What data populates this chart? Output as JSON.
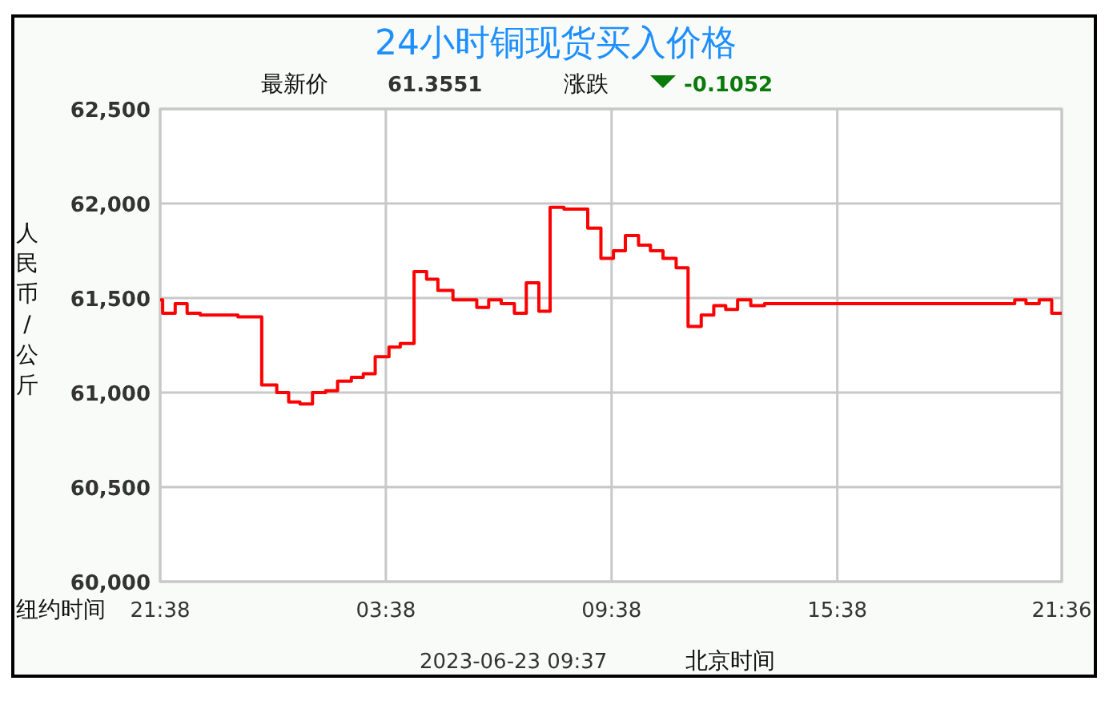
{
  "chart_data": {
    "type": "step",
    "title": "24小时铜现货买入价格",
    "ylabel": "人民币/公斤",
    "annotations": [
      "最新价",
      "61.3551",
      "涨跌",
      "-0.1052",
      "纽约时间",
      "2023-06-23 09:37",
      "北京时间"
    ],
    "xlim": [
      "2023-06-22T21:38",
      "2023-06-23T21:36"
    ],
    "xticks": [
      {
        "value": "2023-06-22T21:38",
        "label": "21:38"
      },
      {
        "value": "2023-06-23T03:38",
        "label": "03:38"
      },
      {
        "value": "2023-06-23T09:38",
        "label": "09:38"
      },
      {
        "value": "2023-06-23T15:38",
        "label": "15:38"
      },
      {
        "value": "2023-06-23T21:36",
        "label": "21:36"
      }
    ],
    "ylim": [
      60000,
      62500
    ],
    "yticks": [
      {
        "value": 60000,
        "label": "60,000"
      },
      {
        "value": 60500,
        "label": "60,500"
      },
      {
        "value": 61000,
        "label": "61,000"
      },
      {
        "value": 61500,
        "label": "61,500"
      },
      {
        "value": 62000,
        "label": "62,000"
      },
      {
        "value": 62500,
        "label": "62,500"
      }
    ],
    "grid": true,
    "series": [
      {
        "color": "#ff0000",
        "x": [
          "2023-06-22T21:38",
          "2023-06-22T21:42",
          "2023-06-22T22:02",
          "2023-06-22T22:21",
          "2023-06-22T22:42",
          "2023-06-22T23:42",
          "2023-06-23T00:20",
          "2023-06-23T00:44",
          "2023-06-23T01:03",
          "2023-06-23T01:21",
          "2023-06-23T01:41",
          "2023-06-23T02:02",
          "2023-06-23T02:21",
          "2023-06-23T02:43",
          "2023-06-23T03:02",
          "2023-06-23T03:21",
          "2023-06-23T03:43",
          "2023-06-23T04:01",
          "2023-06-23T04:23",
          "2023-06-23T04:43",
          "2023-06-23T05:01",
          "2023-06-23T05:25",
          "2023-06-23T05:44",
          "2023-06-23T06:03",
          "2023-06-23T06:22",
          "2023-06-23T06:42",
          "2023-06-23T07:03",
          "2023-06-23T07:22",
          "2023-06-23T07:42",
          "2023-06-23T08:00",
          "2023-06-23T08:22",
          "2023-06-23T09:00",
          "2023-06-23T09:21",
          "2023-06-23T09:41",
          "2023-06-23T10:00",
          "2023-06-23T10:21",
          "2023-06-23T10:40",
          "2023-06-23T11:00",
          "2023-06-23T11:21",
          "2023-06-23T11:40",
          "2023-06-23T12:01",
          "2023-06-23T12:21",
          "2023-06-23T12:40",
          "2023-06-23T12:59",
          "2023-06-23T13:20",
          "2023-06-23T13:42",
          "2023-06-23T20:21",
          "2023-06-23T20:39",
          "2023-06-23T21:00",
          "2023-06-23T21:20",
          "2023-06-23T21:36"
        ],
        "values": [
          61490,
          61420,
          61470,
          61420,
          61410,
          61400,
          61040,
          61000,
          60950,
          60940,
          61000,
          61010,
          61060,
          61080,
          61100,
          61190,
          61240,
          61260,
          61640,
          61600,
          61540,
          61490,
          61490,
          61450,
          61490,
          61470,
          61420,
          61580,
          61430,
          61980,
          61970,
          61870,
          61710,
          61750,
          61830,
          61780,
          61750,
          61710,
          61660,
          61350,
          61410,
          61460,
          61440,
          61490,
          61460,
          61470,
          61490,
          61470,
          61490,
          61420,
          61420
        ]
      }
    ]
  }
}
